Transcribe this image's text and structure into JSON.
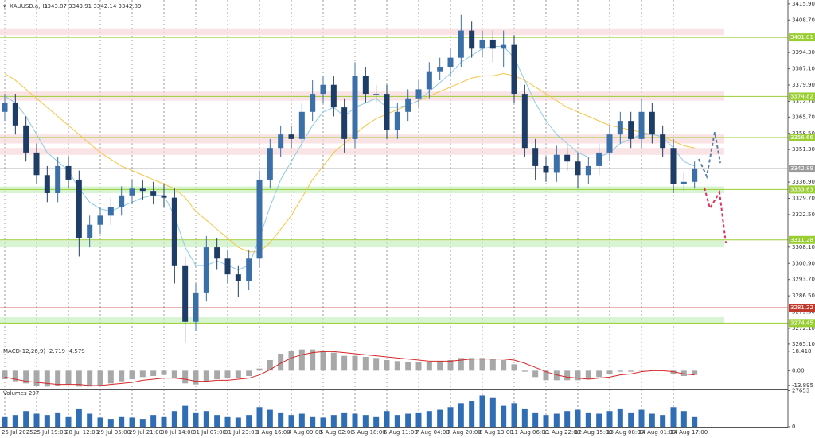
{
  "chart_data": [
    {
      "type": "candlestick",
      "title": "XAUUSD.a,H1",
      "subtitle": "3343.87 3343.91 3342.14 3342.89",
      "up_color": "#3b6fa8",
      "down_color": "#1e3d66",
      "categories": [
        "25 Jul 2025",
        null,
        null,
        "25 Jul 19:00",
        null,
        null,
        "28 Jul 12:00",
        null,
        null,
        "29 Jul 05:00",
        null,
        null,
        "29 Jul 21:00",
        null,
        null,
        "30 Jul 14:00",
        null,
        null,
        "31 Jul 07:00",
        null,
        null,
        "31 Jul 23:00",
        null,
        null,
        "1 Aug 16:00",
        null,
        null,
        "4 Aug 09:00",
        null,
        null,
        "5 Aug 02:00",
        null,
        null,
        "5 Aug 18:00",
        null,
        null,
        "6 Aug 11:00",
        null,
        null,
        "7 Aug 04:00",
        null,
        null,
        "7 Aug 20:00",
        null,
        null,
        "8 Aug 13:00",
        null,
        null,
        "11 Aug 06:00",
        null,
        null,
        "11 Aug 22:00",
        null,
        null,
        "12 Aug 15:00",
        null,
        null,
        "13 Aug 08:00",
        null,
        null,
        "14 Aug 01:00",
        null,
        null,
        "14 Aug 17:00",
        null,
        null
      ],
      "open": [
        3368,
        3372,
        3362,
        3350,
        3340,
        3332,
        3344,
        3338,
        3312,
        3318,
        3322,
        3326,
        3331,
        3334,
        3333,
        3331,
        3330,
        3300,
        3275,
        3288,
        3308,
        3303,
        3296,
        3293,
        3303,
        3338,
        3352,
        3358,
        3356,
        3368,
        3376,
        3380,
        3370,
        3356,
        3384,
        3376,
        3376,
        3360,
        3368,
        3374,
        3378,
        3386,
        3388,
        3392,
        3404,
        3396,
        3400,
        3396,
        3398,
        3376,
        3352,
        3344,
        3341,
        3349,
        3346,
        3340,
        3344,
        3350,
        3358,
        3364,
        3356,
        3368,
        3358,
        3352,
        3336,
        3337
      ],
      "high": [
        3376,
        3376,
        3366,
        3354,
        3344,
        3348,
        3348,
        3342,
        3322,
        3326,
        3330,
        3335,
        3338,
        3338,
        3337,
        3336,
        3334,
        3304,
        3292,
        3313,
        3312,
        3307,
        3300,
        3307,
        3342,
        3356,
        3362,
        3362,
        3372,
        3382,
        3384,
        3384,
        3374,
        3390,
        3388,
        3380,
        3380,
        3372,
        3378,
        3382,
        3390,
        3392,
        3396,
        3411,
        3408,
        3404,
        3404,
        3404,
        3402,
        3380,
        3356,
        3348,
        3353,
        3353,
        3350,
        3348,
        3354,
        3362,
        3368,
        3368,
        3374,
        3372,
        3362,
        3356,
        3341,
        3346
      ],
      "low": [
        3364,
        3358,
        3346,
        3336,
        3328,
        3328,
        3334,
        3304,
        3308,
        3314,
        3318,
        3322,
        3327,
        3329,
        3327,
        3326,
        3292,
        3266,
        3271,
        3284,
        3298,
        3292,
        3286,
        3289,
        3299,
        3334,
        3348,
        3352,
        3352,
        3364,
        3372,
        3366,
        3350,
        3352,
        3372,
        3372,
        3356,
        3356,
        3364,
        3370,
        3374,
        3382,
        3384,
        3388,
        3392,
        3392,
        3390,
        3388,
        3372,
        3348,
        3338,
        3337,
        3337,
        3342,
        3334,
        3336,
        3340,
        3346,
        3354,
        3352,
        3352,
        3354,
        3348,
        3332,
        3333,
        3334
      ],
      "close": [
        3372,
        3362,
        3350,
        3340,
        3332,
        3344,
        3338,
        3312,
        3318,
        3322,
        3326,
        3331,
        3334,
        3333,
        3331,
        3330,
        3300,
        3275,
        3288,
        3308,
        3303,
        3296,
        3293,
        3303,
        3338,
        3352,
        3358,
        3356,
        3368,
        3376,
        3380,
        3370,
        3356,
        3384,
        3376,
        3376,
        3360,
        3368,
        3374,
        3378,
        3386,
        3388,
        3392,
        3404,
        3396,
        3400,
        3396,
        3398,
        3376,
        3352,
        3344,
        3341,
        3349,
        3346,
        3340,
        3344,
        3350,
        3358,
        3364,
        3356,
        3368,
        3358,
        3352,
        3336,
        3337,
        3343
      ],
      "series": [
        {
          "color": "#f5c542",
          "values": [
            3385,
            3382,
            3378,
            3374,
            3370,
            3366,
            3362,
            3358,
            3354,
            3350,
            3347,
            3344,
            3342,
            3340,
            3338,
            3336,
            3334,
            3330,
            3324,
            3320,
            3316,
            3312,
            3308,
            3306,
            3306,
            3310,
            3316,
            3322,
            3330,
            3338,
            3344,
            3350,
            3354,
            3358,
            3362,
            3365,
            3367,
            3369,
            3371,
            3373,
            3375,
            3377,
            3379,
            3381,
            3383,
            3384,
            3384,
            3385,
            3384,
            3382,
            3379,
            3376,
            3373,
            3370,
            3368,
            3366,
            3364,
            3362,
            3361,
            3360,
            3359,
            3358,
            3357,
            3355,
            3353,
            3352
          ]
        },
        {
          "color": "#8ecae6",
          "values": [
            3375,
            3372,
            3366,
            3358,
            3350,
            3346,
            3342,
            3334,
            3328,
            3325,
            3324,
            3326,
            3328,
            3330,
            3331,
            3331,
            3322,
            3308,
            3300,
            3300,
            3302,
            3300,
            3298,
            3300,
            3312,
            3326,
            3338,
            3346,
            3354,
            3362,
            3368,
            3370,
            3366,
            3370,
            3372,
            3374,
            3370,
            3370,
            3371,
            3373,
            3377,
            3381,
            3385,
            3390,
            3393,
            3396,
            3397,
            3397,
            3392,
            3382,
            3372,
            3364,
            3358,
            3354,
            3350,
            3348,
            3348,
            3350,
            3354,
            3356,
            3358,
            3358,
            3357,
            3352,
            3346,
            3344
          ]
        }
      ],
      "levels": [
        {
          "value": 3401.01,
          "color": "#9acd32"
        },
        {
          "value": 3374.82,
          "color": "#9acd32"
        },
        {
          "value": 3356.66,
          "color": "#9acd32"
        },
        {
          "value": 3342.89,
          "color": "#9a9a9a"
        },
        {
          "value": 3333.63,
          "color": "#9acd32"
        },
        {
          "value": 3311.28,
          "color": "#9acd32"
        },
        {
          "value": 3281.22,
          "color": "#c0392b"
        },
        {
          "value": 3274.45,
          "color": "#9acd32"
        }
      ],
      "zones": [
        {
          "from": 3402,
          "to": 3405,
          "color": "#f8d7da"
        },
        {
          "from": 3373,
          "to": 3377,
          "color": "#f8d7da"
        },
        {
          "from": 3354,
          "to": 3358,
          "color": "#f8d7da"
        },
        {
          "from": 3349,
          "to": 3352,
          "color": "#f8d7da"
        },
        {
          "from": 3332,
          "to": 3335,
          "color": "#c8f0c0"
        },
        {
          "from": 3308,
          "to": 3311,
          "color": "#c8f0c0"
        },
        {
          "from": 3274,
          "to": 3277,
          "color": "#c8f0c0"
        }
      ],
      "ylim": [
        3264.0,
        3417.6
      ],
      "yticks": [
        {
          "value": 3415.9,
          "label": "3415.90"
        },
        {
          "value": 3408.7,
          "label": "3408.70"
        },
        {
          "value": 3394.3,
          "label": "3394.30"
        },
        {
          "value": 3387.1,
          "label": "3387.10"
        },
        {
          "value": 3379.9,
          "label": "3379.90"
        },
        {
          "value": 3372.7,
          "label": "3372.70"
        },
        {
          "value": 3365.7,
          "label": "3365.70"
        },
        {
          "value": 3358.5,
          "label": "3358.50"
        },
        {
          "value": 3351.3,
          "label": "3351.30"
        },
        {
          "value": 3336.9,
          "label": "3336.90"
        },
        {
          "value": 3329.7,
          "label": "3329.70"
        },
        {
          "value": 3322.5,
          "label": "3322.50"
        },
        {
          "value": 3308.1,
          "label": "3308.10"
        },
        {
          "value": 3300.9,
          "label": "3300.90"
        },
        {
          "value": 3293.7,
          "label": "3293.70"
        },
        {
          "value": 3286.5,
          "label": "3286.50"
        },
        {
          "value": 3279.3,
          "label": "3279.30"
        },
        {
          "value": 3272.1,
          "label": "3272.10"
        },
        {
          "value": 3265.1,
          "label": "3265.10"
        }
      ],
      "grid": true
    },
    {
      "type": "macd",
      "title": "MACD(12,26,9) -2.719 -4.579",
      "color": "#a8a8a8",
      "values": [
        -8,
        -10,
        -12,
        -14,
        -15,
        -14,
        -13,
        -15,
        -15,
        -14,
        -12,
        -10,
        -8,
        -6,
        -5,
        -4,
        -7,
        -12,
        -13,
        -10,
        -8,
        -7,
        -7,
        -5,
        2,
        10,
        16,
        19,
        20,
        20,
        19,
        17,
        14,
        14,
        13,
        12,
        10,
        9,
        8,
        8,
        8,
        9,
        10,
        12,
        12,
        12,
        11,
        10,
        6,
        -1,
        -6,
        -9,
        -9,
        -9,
        -9,
        -8,
        -6,
        -3,
        -1,
        -1,
        1,
        1,
        0,
        -3,
        -5,
        -4
      ],
      "signal": {
        "color": "#d62728",
        "values": [
          -6,
          -8,
          -10,
          -11,
          -12,
          -13,
          -13,
          -13,
          -14,
          -14,
          -13,
          -12,
          -11,
          -9,
          -8,
          -7,
          -7,
          -8,
          -10,
          -10,
          -9,
          -9,
          -8,
          -7,
          -4,
          1,
          7,
          12,
          15,
          17,
          18,
          18,
          17,
          16,
          15,
          14,
          13,
          12,
          11,
          10,
          9,
          9,
          9,
          10,
          11,
          11,
          11,
          11,
          10,
          7,
          3,
          -1,
          -4,
          -6,
          -7,
          -8,
          -7,
          -6,
          -4,
          -3,
          -1,
          0,
          0,
          -1,
          -3,
          -4
        ]
      },
      "ylim": [
        -17,
        22
      ],
      "yticks": [
        18.418,
        {
          "value": 0,
          "label": "0.00"
        },
        -13.895
      ]
    },
    {
      "type": "bar",
      "title": "Volumes 297",
      "color": "#2f6db5",
      "values": [
        8000,
        9000,
        12000,
        10000,
        9000,
        11000,
        8000,
        14000,
        10000,
        7000,
        6000,
        8000,
        7000,
        6000,
        9000,
        8000,
        12000,
        16000,
        11000,
        12000,
        9000,
        8000,
        7000,
        9000,
        15000,
        13000,
        11000,
        9000,
        10000,
        8000,
        7000,
        9000,
        11000,
        10000,
        9000,
        8000,
        12000,
        9000,
        10000,
        11000,
        12000,
        13000,
        15000,
        18000,
        20000,
        24000,
        22000,
        16000,
        18000,
        14000,
        11000,
        9000,
        10000,
        12000,
        13000,
        11000,
        10000,
        12000,
        14000,
        11000,
        13000,
        10000,
        9000,
        15000,
        12000,
        8000
      ],
      "ylim": [
        0,
        28500
      ],
      "yticks": [
        27653,
        0
      ]
    }
  ]
}
